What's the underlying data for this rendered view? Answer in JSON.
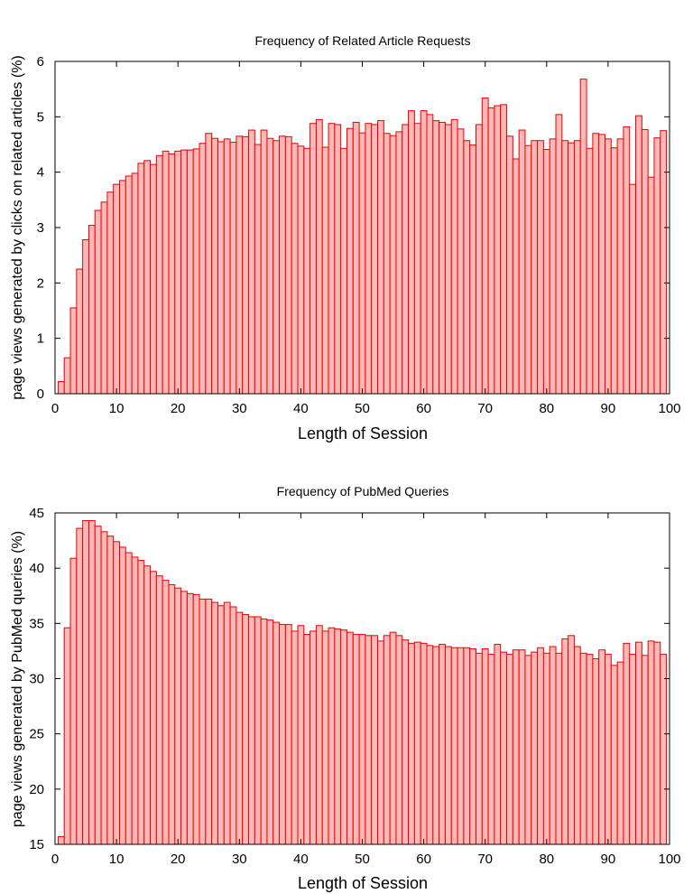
{
  "colors": {
    "bar_fill": "#ffb8b8",
    "bar_stroke": "#ee0000",
    "axis": "#000000"
  },
  "chart_data": [
    {
      "type": "bar",
      "title": "Frequency of Related Article Requests",
      "xlabel": "Length of Session",
      "ylabel": "page views generated by clicks on related articles (%)",
      "xlim": [
        0,
        100
      ],
      "ylim": [
        0,
        6
      ],
      "xticks": [
        "0",
        "10",
        "20",
        "30",
        "40",
        "50",
        "60",
        "70",
        "80",
        "90",
        "100"
      ],
      "yticks": [
        "0",
        "1",
        "2",
        "3",
        "4",
        "5",
        "6"
      ],
      "grid": false,
      "x": [
        1,
        2,
        3,
        4,
        5,
        6,
        7,
        8,
        9,
        10,
        11,
        12,
        13,
        14,
        15,
        16,
        17,
        18,
        19,
        20,
        21,
        22,
        23,
        24,
        25,
        26,
        27,
        28,
        29,
        30,
        31,
        32,
        33,
        34,
        35,
        36,
        37,
        38,
        39,
        40,
        41,
        42,
        43,
        44,
        45,
        46,
        47,
        48,
        49,
        50,
        51,
        52,
        53,
        54,
        55,
        56,
        57,
        58,
        59,
        60,
        61,
        62,
        63,
        64,
        65,
        66,
        67,
        68,
        69,
        70,
        71,
        72,
        73,
        74,
        75,
        76,
        77,
        78,
        79,
        80,
        81,
        82,
        83,
        84,
        85,
        86,
        87,
        88,
        89,
        90,
        91,
        92,
        93,
        94,
        95,
        96,
        97,
        98,
        99
      ],
      "values": [
        0.22,
        0.65,
        1.55,
        2.25,
        2.78,
        3.04,
        3.31,
        3.46,
        3.64,
        3.78,
        3.85,
        3.93,
        3.98,
        4.16,
        4.21,
        4.14,
        4.3,
        4.38,
        4.33,
        4.38,
        4.4,
        4.4,
        4.42,
        4.52,
        4.7,
        4.61,
        4.55,
        4.6,
        4.54,
        4.65,
        4.64,
        4.76,
        4.5,
        4.76,
        4.61,
        4.57,
        4.65,
        4.64,
        4.52,
        4.47,
        4.43,
        4.88,
        4.95,
        4.45,
        4.88,
        4.86,
        4.43,
        4.79,
        4.9,
        4.71,
        4.88,
        4.86,
        4.93,
        4.7,
        4.66,
        4.73,
        4.86,
        5.11,
        4.88,
        5.11,
        5.04,
        4.93,
        4.9,
        4.86,
        4.95,
        4.78,
        4.57,
        4.49,
        4.86,
        5.34,
        5.16,
        5.2,
        5.22,
        4.65,
        4.24,
        4.76,
        4.48,
        4.57,
        4.57,
        4.41,
        4.6,
        5.04,
        4.57,
        4.53,
        4.57,
        5.68,
        4.43,
        4.7,
        4.68,
        4.6,
        4.44,
        4.6,
        4.82,
        3.78,
        5.02,
        4.77,
        3.91,
        4.62,
        4.75
      ]
    },
    {
      "type": "bar",
      "title": "Frequency of PubMed Queries",
      "xlabel": "Length of Session",
      "ylabel": "page views generated by PubMed queries (%)",
      "xlim": [
        0,
        100
      ],
      "ylim": [
        15,
        45
      ],
      "xticks": [
        "0",
        "10",
        "20",
        "30",
        "40",
        "50",
        "60",
        "70",
        "80",
        "90",
        "100"
      ],
      "yticks": [
        "15",
        "20",
        "25",
        "30",
        "35",
        "40",
        "45"
      ],
      "grid": false,
      "x": [
        1,
        2,
        3,
        4,
        5,
        6,
        7,
        8,
        9,
        10,
        11,
        12,
        13,
        14,
        15,
        16,
        17,
        18,
        19,
        20,
        21,
        22,
        23,
        24,
        25,
        26,
        27,
        28,
        29,
        30,
        31,
        32,
        33,
        34,
        35,
        36,
        37,
        38,
        39,
        40,
        41,
        42,
        43,
        44,
        45,
        46,
        47,
        48,
        49,
        50,
        51,
        52,
        53,
        54,
        55,
        56,
        57,
        58,
        59,
        60,
        61,
        62,
        63,
        64,
        65,
        66,
        67,
        68,
        69,
        70,
        71,
        72,
        73,
        74,
        75,
        76,
        77,
        78,
        79,
        80,
        81,
        82,
        83,
        84,
        85,
        86,
        87,
        88,
        89,
        90,
        91,
        92,
        93,
        94,
        95,
        96,
        97,
        98,
        99
      ],
      "values": [
        15.7,
        34.6,
        40.9,
        43.6,
        44.3,
        44.3,
        43.8,
        43.3,
        42.9,
        42.4,
        41.9,
        41.4,
        41.0,
        40.7,
        40.2,
        39.7,
        39.3,
        38.9,
        38.5,
        38.2,
        37.9,
        37.7,
        37.6,
        37.2,
        37.2,
        36.9,
        36.6,
        36.9,
        36.5,
        36.0,
        35.8,
        35.6,
        35.6,
        35.4,
        35.3,
        35.1,
        34.9,
        34.9,
        34.3,
        34.8,
        34.0,
        34.3,
        34.8,
        34.3,
        34.6,
        34.5,
        34.4,
        34.2,
        34.0,
        34.0,
        33.9,
        33.9,
        33.4,
        33.9,
        34.2,
        33.9,
        33.5,
        33.2,
        33.3,
        33.2,
        33.0,
        32.9,
        33.1,
        32.9,
        32.8,
        32.8,
        32.8,
        32.7,
        32.3,
        32.7,
        32.2,
        33.1,
        32.4,
        32.2,
        32.6,
        32.6,
        32.1,
        32.4,
        32.8,
        32.3,
        32.9,
        32.3,
        33.6,
        33.9,
        32.9,
        32.3,
        32.2,
        31.8,
        32.6,
        32.2,
        31.2,
        31.5,
        33.2,
        32.2,
        33.3,
        32.1,
        33.4,
        33.3,
        32.2
      ]
    }
  ]
}
